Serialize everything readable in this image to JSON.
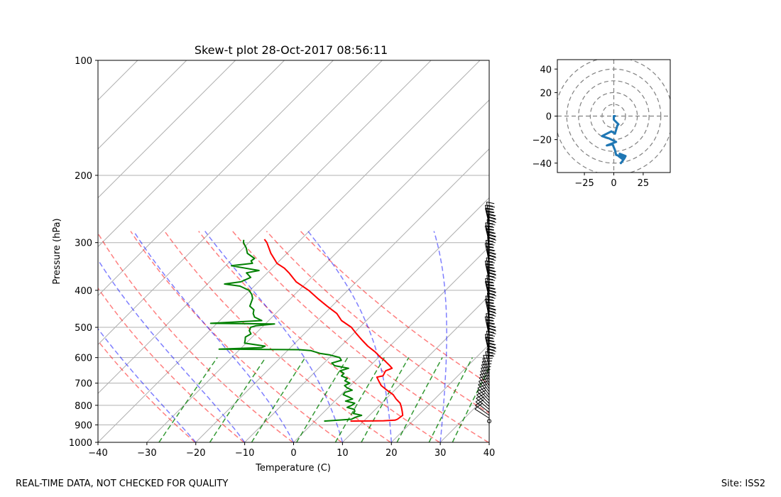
{
  "chart_data": [
    {
      "type": "line",
      "chart_kind": "skew-t",
      "title": "Skew-t plot 28-Oct-2017 08:56:11",
      "xlabel": "Temperature (C)",
      "ylabel": "Pressure (hPa)",
      "xlim": [
        -40,
        40
      ],
      "ylim_pressure": [
        1000,
        100
      ],
      "x_ticks": [
        -40,
        -30,
        -20,
        -10,
        0,
        10,
        20,
        30,
        40
      ],
      "x_tick_labels": [
        "−40",
        "−30",
        "−20",
        "−10",
        "0",
        "10",
        "20",
        "30",
        "40"
      ],
      "y_ticks": [
        100,
        200,
        300,
        400,
        500,
        600,
        700,
        800,
        900,
        1000
      ],
      "y_tick_labels": [
        "100",
        "200",
        "300",
        "400",
        "500",
        "600",
        "700",
        "800",
        "900",
        "1000"
      ],
      "series": [
        {
          "name": "temperature",
          "color": "#ff0000",
          "pressure": [
            880,
            878,
            875,
            870,
            850,
            830,
            810,
            790,
            770,
            750,
            730,
            710,
            690,
            675,
            670,
            650,
            640,
            630,
            620,
            610,
            600,
            580,
            560,
            540,
            520,
            500,
            480,
            460,
            440,
            420,
            400,
            380,
            360,
            350,
            340,
            320,
            300,
            294
          ],
          "temperature": [
            7.3,
            14.0,
            16.2,
            16.5,
            16.8,
            15.9,
            14.9,
            13.8,
            12.1,
            10.6,
            8.4,
            6.3,
            4.8,
            3.7,
            4.7,
            4.2,
            5.0,
            4.0,
            2.9,
            1.8,
            0.5,
            -1.8,
            -4.5,
            -6.9,
            -9.3,
            -11.7,
            -15.1,
            -17.5,
            -21.0,
            -24.5,
            -28.0,
            -32.3,
            -35.6,
            -37.5,
            -40.0,
            -43.3,
            -46.3,
            -47.5
          ]
        },
        {
          "name": "dewpoint",
          "color": "#008000",
          "pressure": [
            880,
            870,
            860,
            850,
            840,
            830,
            820,
            810,
            800,
            790,
            780,
            770,
            760,
            750,
            740,
            730,
            720,
            710,
            700,
            690,
            680,
            670,
            660,
            650,
            640,
            630,
            620,
            610,
            600,
            590,
            585,
            575,
            572,
            570,
            565,
            560,
            550,
            540,
            530,
            520,
            510,
            500,
            495,
            490,
            488,
            480,
            470,
            460,
            450,
            440,
            420,
            410,
            400,
            390,
            385,
            380,
            370,
            360,
            355,
            350,
            345,
            340,
            335,
            330,
            320,
            310,
            300,
            295
          ],
          "temperature": [
            1.9,
            7.1,
            7.5,
            8.4,
            6.3,
            6.2,
            5.7,
            3.8,
            4.3,
            4.5,
            2.2,
            3.2,
            1.9,
            0.4,
            0.3,
            1.3,
            -0.2,
            -1.2,
            -0.6,
            -2.1,
            -2.1,
            -3.8,
            -3.8,
            -5.1,
            -3.9,
            -7.3,
            -8.4,
            -7.0,
            -7.9,
            -10.6,
            -12.8,
            -15.3,
            -17.8,
            -34.3,
            -25.9,
            -25.5,
            -30.3,
            -30.8,
            -31.4,
            -30.9,
            -31.9,
            -32.3,
            -31.5,
            -28.1,
            -41.3,
            -31.4,
            -33.6,
            -34.6,
            -35.2,
            -36.8,
            -37.8,
            -38.8,
            -40.2,
            -42.9,
            -46.5,
            -43.6,
            -42.5,
            -44.3,
            -42.2,
            -45.5,
            -48.8,
            -45.0,
            -45.8,
            -45.6,
            -48.1,
            -49.4,
            -51.1,
            -51.6
          ]
        }
      ],
      "dry_adiabats_theta_K": [
        253,
        263,
        273,
        283,
        293,
        303,
        313,
        323,
        333
      ],
      "moist_adiabats_start_C": [
        -20,
        -10,
        0,
        10,
        20,
        30,
        40,
        50
      ],
      "mixing_ratios_g_kg": [
        0.4,
        1,
        2,
        4,
        7,
        10,
        16,
        24,
        32
      ],
      "wind_barbs": {
        "color": "#000000",
        "pressure_range": [
          880,
          260
        ],
        "count": 70
      }
    },
    {
      "type": "line",
      "chart_kind": "hodograph",
      "xlim": [
        -48,
        48
      ],
      "ylim": [
        -48,
        48
      ],
      "x_ticks": [
        -25,
        0,
        25
      ],
      "x_tick_labels": [
        "−25",
        "0",
        "25"
      ],
      "y_ticks": [
        40,
        20,
        0,
        -20,
        -40
      ],
      "y_tick_labels": [
        "40",
        "20",
        "0",
        "−20",
        "−40"
      ],
      "rings": [
        10,
        20,
        30,
        40,
        50
      ],
      "series": [
        {
          "name": "wind",
          "color": "#1f77b4",
          "u": [
            6,
            9,
            10,
            5,
            8,
            4,
            9,
            2,
            1,
            -1,
            -6,
            2,
            -4,
            -10,
            -2,
            1,
            3,
            4,
            0,
            0,
            1
          ],
          "v": [
            -40,
            -36,
            -34,
            -32,
            -37,
            -34,
            -35,
            -33,
            -29,
            -24,
            -25,
            -22,
            -19,
            -17,
            -13,
            -15,
            -8,
            -7,
            -3,
            0,
            0
          ]
        }
      ]
    }
  ],
  "footer": {
    "left": "REAL-TIME DATA, NOT CHECKED FOR QUALITY",
    "right": "Site: ISS2"
  }
}
